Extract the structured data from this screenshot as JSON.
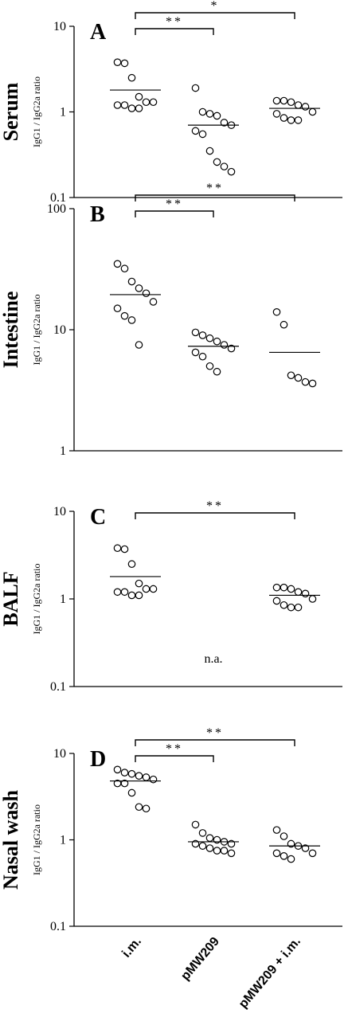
{
  "chart_data": [
    {
      "type": "scatter",
      "panel": "A",
      "ylabel_group": "Serum",
      "ylabel": "IgG1 / IgG2a ratio",
      "yscale": "log",
      "ylim": [
        0.1,
        10
      ],
      "yticks": [
        "0.1",
        "1",
        "10"
      ],
      "categories": [
        "i.m.",
        "pMW209",
        "pMW209 + i.m."
      ],
      "series": [
        {
          "category": "i.m.",
          "values": [
            3.8,
            3.7,
            2.5,
            1.5,
            1.3,
            1.3,
            1.2,
            1.2,
            1.1,
            1.1
          ],
          "mean": 1.8
        },
        {
          "category": "pMW209",
          "values": [
            1.9,
            1.0,
            0.95,
            0.9,
            0.75,
            0.7,
            0.6,
            0.55,
            0.35,
            0.26,
            0.23,
            0.2
          ],
          "mean": 0.7
        },
        {
          "category": "pMW209 + i.m.",
          "values": [
            1.35,
            1.35,
            1.3,
            1.2,
            1.15,
            1.0,
            0.95,
            0.85,
            0.8,
            0.8
          ],
          "mean": 1.1
        }
      ],
      "significance": [
        {
          "label": "**",
          "from": "i.m.",
          "to": "pMW209"
        },
        {
          "label": "*",
          "from": "i.m.",
          "to": "pMW209 + i.m."
        }
      ],
      "note": ""
    },
    {
      "type": "scatter",
      "panel": "B",
      "ylabel_group": "Intestine",
      "ylabel": "IgG1 / IgG2a ratio",
      "yscale": "log",
      "ylim": [
        1,
        100
      ],
      "yticks": [
        "1",
        "10",
        "100"
      ],
      "categories": [
        "i.m.",
        "pMW209",
        "pMW209 + i.m."
      ],
      "series": [
        {
          "category": "i.m.",
          "values": [
            35,
            32,
            25,
            22,
            20,
            17,
            15,
            13,
            12,
            7.5
          ],
          "mean": 19.5
        },
        {
          "category": "pMW209",
          "values": [
            9.5,
            9,
            8.5,
            8,
            7.5,
            7,
            6.5,
            6,
            5,
            4.5
          ],
          "mean": 7.3
        },
        {
          "category": "pMW209 + i.m.",
          "values": [
            14,
            11,
            4.2,
            4,
            3.7,
            3.6
          ],
          "mean": 6.5
        }
      ],
      "significance": [
        {
          "label": "**",
          "from": "i.m.",
          "to": "pMW209"
        },
        {
          "label": "**",
          "from": "i.m.",
          "to": "pMW209 + i.m."
        }
      ],
      "note": ""
    },
    {
      "type": "scatter",
      "panel": "C",
      "ylabel_group": "BALF",
      "ylabel": "IgG1 / IgG2a ratio",
      "yscale": "log",
      "ylim": [
        0.1,
        10
      ],
      "yticks": [
        "0.1",
        "1",
        "10"
      ],
      "categories": [
        "i.m.",
        "pMW209",
        "pMW209 + i.m."
      ],
      "series": [
        {
          "category": "i.m.",
          "values": [
            3.8,
            3.7,
            2.5,
            1.5,
            1.3,
            1.3,
            1.2,
            1.2,
            1.1,
            1.1
          ],
          "mean": 1.8
        },
        {
          "category": "pMW209",
          "values": [],
          "mean": null
        },
        {
          "category": "pMW209 + i.m.",
          "values": [
            1.35,
            1.35,
            1.3,
            1.2,
            1.15,
            1.0,
            0.95,
            0.85,
            0.8,
            0.8
          ],
          "mean": 1.1
        }
      ],
      "significance": [
        {
          "label": "**",
          "from": "i.m.",
          "to": "pMW209 + i.m."
        }
      ],
      "note": "n.a."
    },
    {
      "type": "scatter",
      "panel": "D",
      "ylabel_group": "Nasal wash",
      "ylabel": "IgG1 / IgG2a ratio",
      "yscale": "log",
      "ylim": [
        0.1,
        10
      ],
      "yticks": [
        "0.1",
        "1",
        "10"
      ],
      "categories": [
        "i.m.",
        "pMW209",
        "pMW209 + i.m."
      ],
      "series": [
        {
          "category": "i.m.",
          "values": [
            6.5,
            6,
            5.8,
            5.5,
            5.3,
            5,
            4.5,
            4.5,
            3.5,
            2.4,
            2.3
          ],
          "mean": 4.8
        },
        {
          "category": "pMW209",
          "values": [
            1.5,
            1.2,
            1.05,
            1.0,
            0.95,
            0.9,
            0.9,
            0.85,
            0.8,
            0.75,
            0.75,
            0.7
          ],
          "mean": 0.95
        },
        {
          "category": "pMW209 + i.m.",
          "values": [
            1.3,
            1.1,
            0.9,
            0.85,
            0.8,
            0.7,
            0.7,
            0.65,
            0.6
          ],
          "mean": 0.85
        }
      ],
      "significance": [
        {
          "label": "**",
          "from": "i.m.",
          "to": "pMW209"
        },
        {
          "label": "**",
          "from": "i.m.",
          "to": "pMW209 + i.m."
        }
      ],
      "note": ""
    }
  ]
}
